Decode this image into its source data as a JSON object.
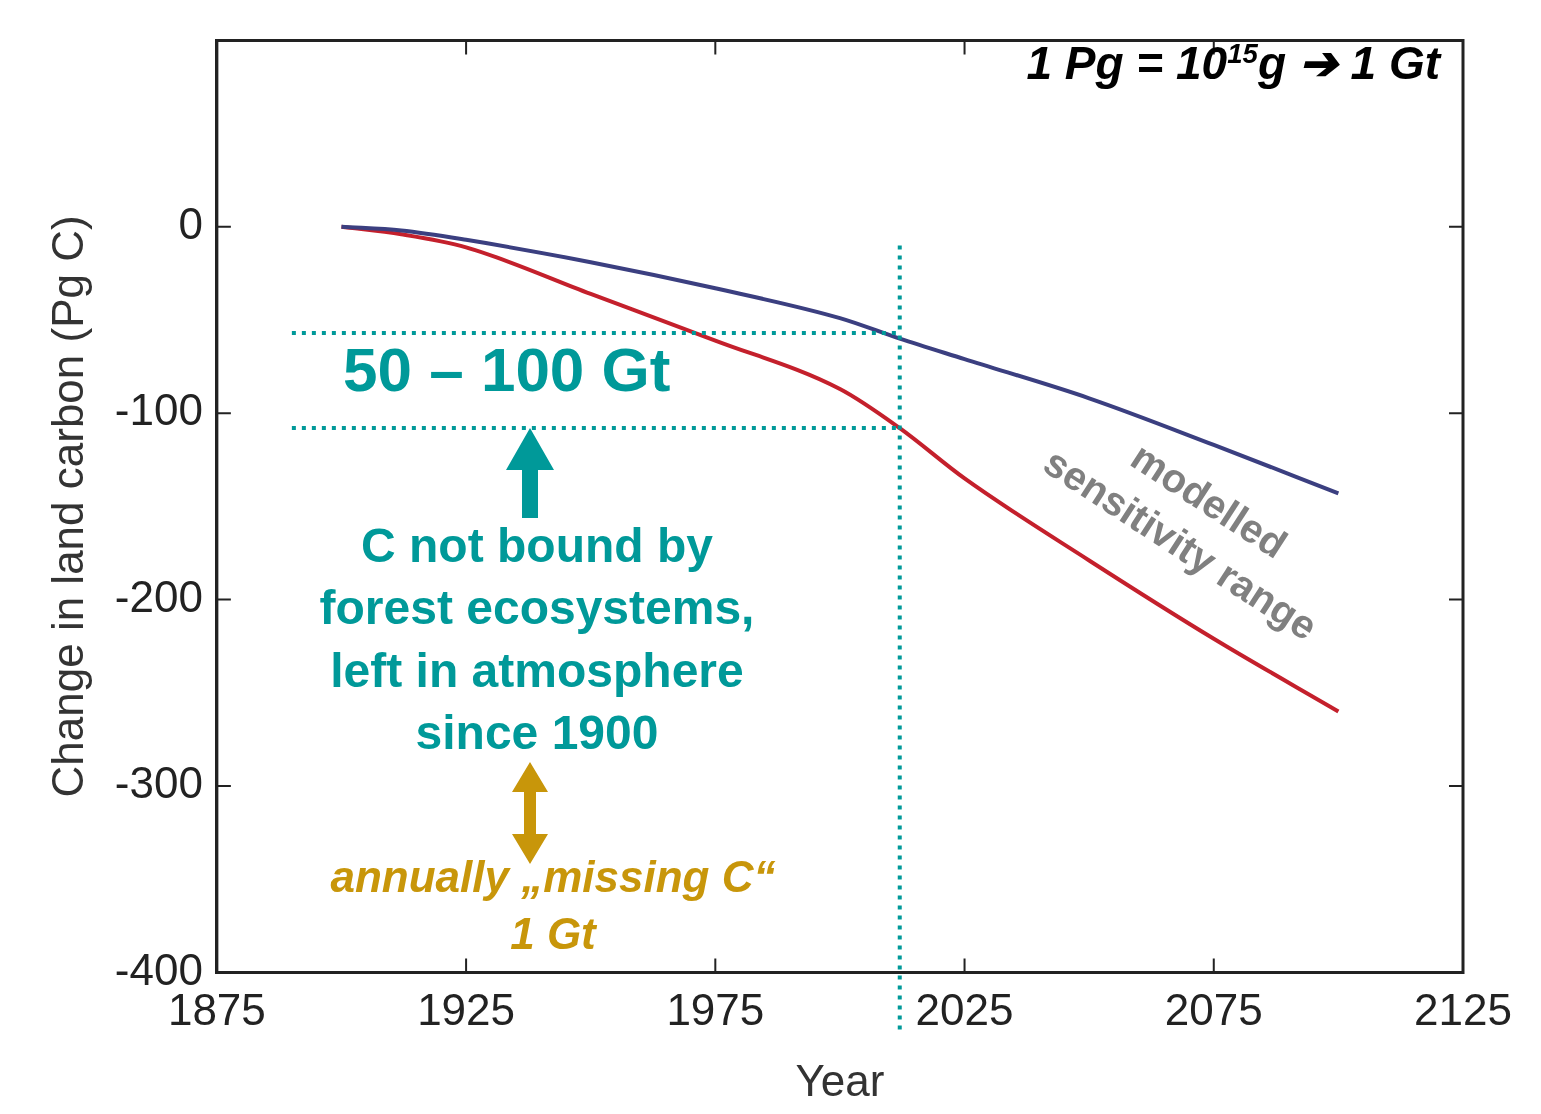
{
  "chart_data": {
    "type": "line",
    "xlabel": "Year",
    "ylabel": "Change in land carbon (Pg C)",
    "x": [
      1900,
      1912,
      1925,
      1950,
      1975,
      2000,
      2012,
      2025,
      2050,
      2075,
      2100
    ],
    "series": [
      {
        "color": "#3b3f80",
        "values": [
          0,
          -2,
          -7,
          -19,
          -33,
          -49,
          -60,
          -71,
          -92,
          -117,
          -143
        ]
      },
      {
        "color": "#c4202c",
        "values": [
          0,
          -4,
          -11,
          -36,
          -61,
          -87,
          -108,
          -135,
          -179,
          -221,
          -260
        ]
      }
    ],
    "xlim": [
      1875,
      2125
    ],
    "xticks": [
      1875,
      1925,
      1975,
      2025,
      2075,
      2125
    ],
    "ylim": [
      -400,
      100
    ],
    "yticks": [
      -400,
      -300,
      -200,
      -100,
      0
    ],
    "grid": false,
    "legend": false,
    "marker": "none",
    "line_style": "solid",
    "ref_lines": [
      {
        "axis": "x",
        "value": 2012,
        "color": "#009999",
        "line_style": "dotted"
      },
      {
        "axis": "y",
        "value": -57,
        "color": "#009999",
        "line_style": "dotted"
      },
      {
        "axis": "y",
        "value": -108,
        "color": "#009999",
        "line_style": "dotted"
      }
    ],
    "annotations": [
      "1 Pg = 10$^{15}$g ➔ 1 Gt",
      "50 – 100 Gt",
      "C not bound by forest ecosystems, left in atmosphere since 1900",
      "modelled sensitivity range",
      "annually „missing C“ 1 Gt"
    ]
  }
}
